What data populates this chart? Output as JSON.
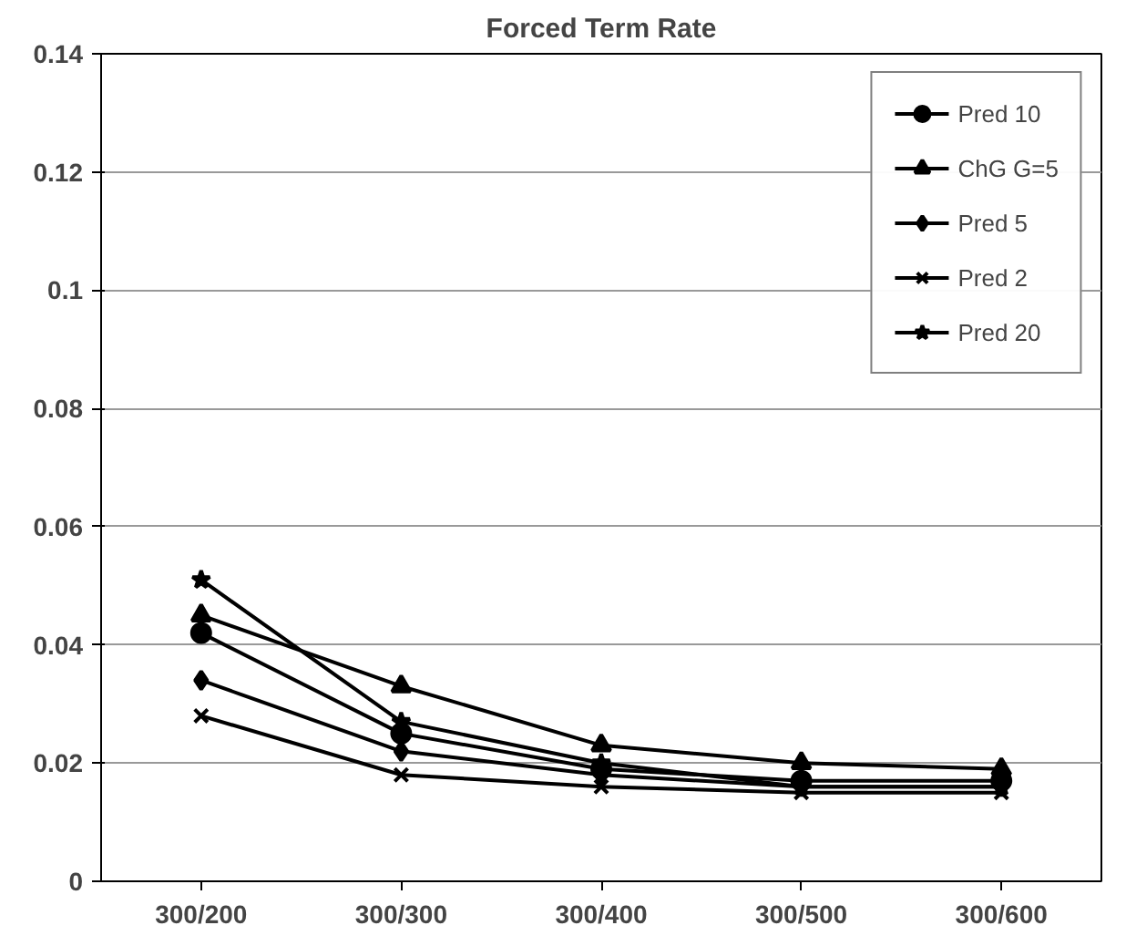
{
  "chart_data": {
    "type": "line",
    "title": "Forced Term Rate",
    "categories": [
      "300/200",
      "300/300",
      "300/400",
      "300/500",
      "300/600"
    ],
    "series": [
      {
        "name": "Pred 10",
        "color": "#000000",
        "marker": "circle",
        "values": [
          0.042,
          0.025,
          0.019,
          0.017,
          0.017
        ]
      },
      {
        "name": "ChG G=5",
        "color": "#000000",
        "marker": "triangle",
        "values": [
          0.045,
          0.033,
          0.023,
          0.02,
          0.019
        ]
      },
      {
        "name": "Pred 5",
        "color": "#000000",
        "marker": "diamond",
        "values": [
          0.034,
          0.022,
          0.018,
          0.016,
          0.016
        ]
      },
      {
        "name": "Pred 2",
        "color": "#000000",
        "marker": "cross",
        "values": [
          0.028,
          0.018,
          0.016,
          0.015,
          0.015
        ]
      },
      {
        "name": "Pred 20",
        "color": "#000000",
        "marker": "star",
        "values": [
          0.051,
          0.027,
          0.02,
          0.016,
          0.016
        ]
      }
    ],
    "ylim": [
      0,
      0.14
    ],
    "yticks": [
      0,
      0.02,
      0.04,
      0.06,
      0.08,
      0.1,
      0.12,
      0.14
    ],
    "grid": "y",
    "legend": "top right",
    "line_style": "solid"
  }
}
